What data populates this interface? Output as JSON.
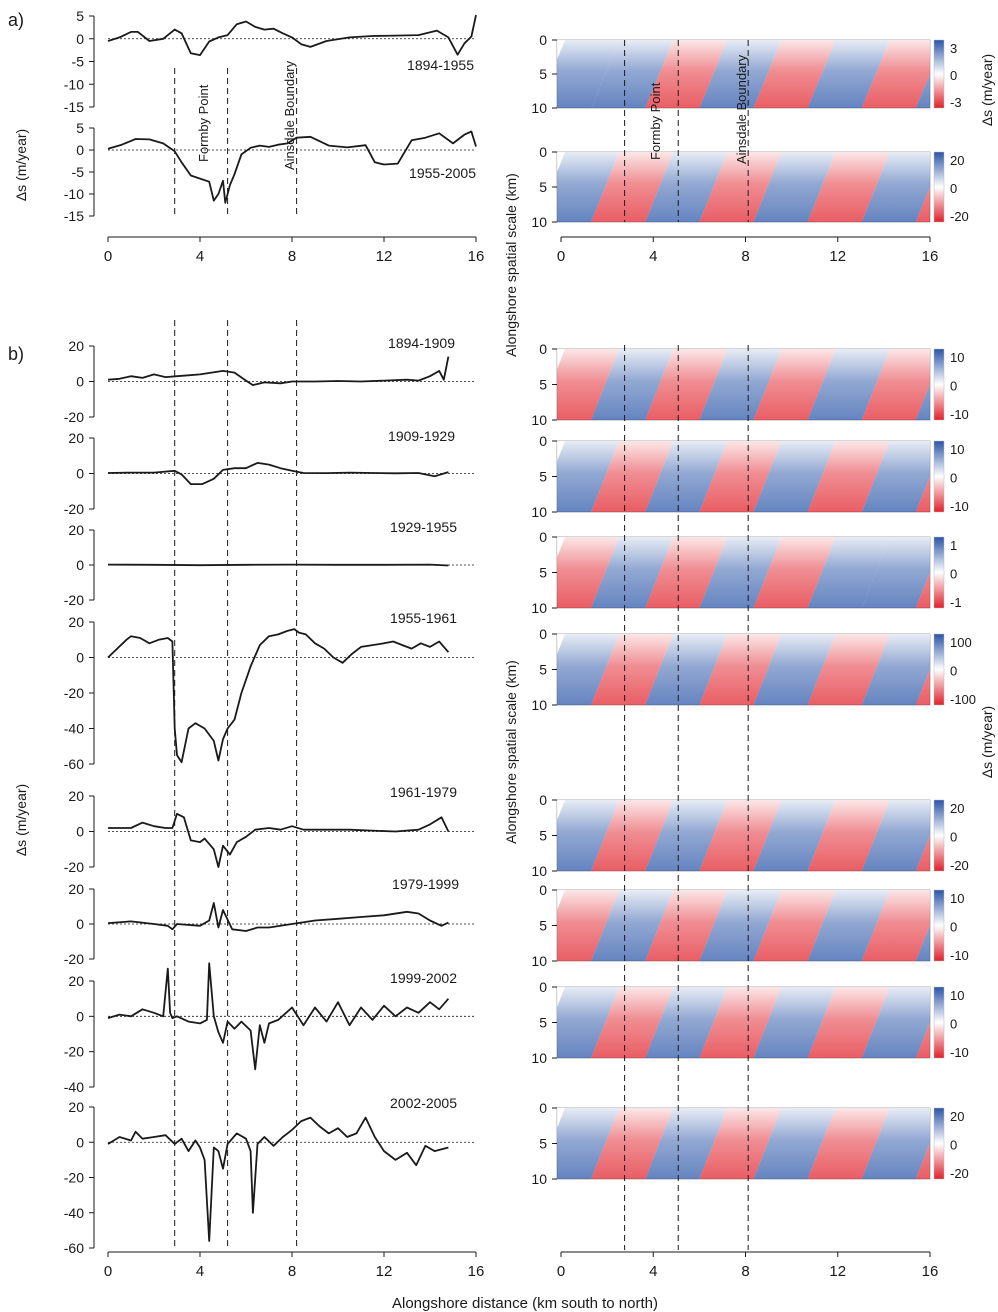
{
  "figure": {
    "panel_a_label": "a)",
    "panel_b_label": "b)",
    "xlabel": "Alongshore distance (km south to north)",
    "line_ylabel": "Δs (m/year)",
    "wavelet_ylabel": "Alongshore spatial scale (km)",
    "colorbar_label": "Δs (m/year)",
    "x_ticks": [
      "0",
      "4",
      "8",
      "12",
      "16"
    ],
    "scale_ticks": [
      "0",
      "5",
      "10"
    ],
    "landmarks": [
      {
        "name": "Formby Point",
        "x_km": 4.0
      },
      {
        "name": "Ainsdale Boundary",
        "x_km": 8.2
      }
    ],
    "reference_lines_km": [
      2.9,
      5.2,
      8.2
    ],
    "colors": {
      "positive": "#2a55a8",
      "negative": "#e0202a",
      "zero": "#ffffff",
      "line": "#1a1a1a"
    }
  },
  "chart_data": [
    {
      "type": "line",
      "panel": "a",
      "period": "1894-1955",
      "ylim": [
        -15,
        5
      ],
      "yticks": [
        "5",
        "0",
        "-5",
        "-10",
        "-15"
      ],
      "xlim": [
        0,
        16
      ],
      "x": [
        0,
        0.5,
        1,
        1.3,
        1.8,
        2.4,
        2.9,
        3.2,
        3.6,
        4.0,
        4.4,
        4.8,
        5.2,
        5.6,
        6.0,
        6.4,
        6.8,
        7.2,
        7.6,
        8.0,
        8.4,
        8.8,
        9.5,
        10.5,
        11.5,
        12.5,
        13.5,
        14.3,
        14.8,
        15.2,
        15.5,
        15.8,
        16.0
      ],
      "y": [
        -0.5,
        0.3,
        1.5,
        1.5,
        -0.5,
        0,
        2,
        1.2,
        -3.2,
        -3.6,
        -0.6,
        0.3,
        0.8,
        3.2,
        3.8,
        2.6,
        2.0,
        2.2,
        1.2,
        0.3,
        -1.2,
        -1.8,
        -0.5,
        0.3,
        0.6,
        0.7,
        0.8,
        1.8,
        0.3,
        -3.5,
        -1,
        0.5,
        5.2
      ]
    },
    {
      "type": "line",
      "panel": "a",
      "period": "1955-2005",
      "ylim": [
        -15,
        5
      ],
      "yticks": [
        "5",
        "0",
        "-5",
        "-10",
        "-15"
      ],
      "xlim": [
        0,
        16
      ],
      "x": [
        0,
        0.6,
        1.2,
        1.8,
        2.4,
        2.9,
        3.2,
        3.6,
        4.0,
        4.4,
        4.6,
        4.8,
        5.0,
        5.1,
        5.3,
        5.5,
        5.8,
        6.2,
        6.6,
        7.0,
        7.4,
        7.8,
        8.2,
        8.8,
        9.6,
        10.4,
        11.2,
        11.6,
        12.0,
        12.6,
        13.2,
        13.8,
        14.4,
        15.0,
        15.5,
        15.8,
        16.0
      ],
      "y": [
        0.3,
        1.2,
        2.5,
        2.4,
        1.5,
        -0.3,
        -2.8,
        -5.8,
        -6.5,
        -7.2,
        -11.5,
        -10.0,
        -7.0,
        -12.0,
        -8.0,
        -5.5,
        -1.0,
        0.5,
        1.0,
        0.7,
        1.2,
        1.5,
        2.8,
        3.0,
        1.0,
        0.6,
        1.1,
        -2.8,
        -3.3,
        -3.1,
        2.2,
        2.8,
        3.8,
        1.5,
        3.5,
        4.2,
        0.8
      ]
    },
    {
      "type": "line",
      "panel": "b",
      "period": "1894-1909",
      "ylim": [
        -20,
        20
      ],
      "yticks": [
        "20",
        "0",
        "-20"
      ],
      "xlim": [
        0,
        16
      ],
      "x": [
        0,
        0.5,
        1,
        1.5,
        2,
        2.5,
        3,
        3.5,
        4,
        4.5,
        5,
        5.5,
        6,
        6.3,
        6.8,
        7.5,
        8,
        9,
        10,
        11,
        12,
        13,
        13.5,
        14,
        14.4,
        14.6,
        14.8
      ],
      "y": [
        1,
        1.5,
        3,
        2,
        4,
        2.5,
        3,
        3.5,
        4,
        5,
        6,
        5,
        0.5,
        -2,
        -0.5,
        -1,
        0,
        0,
        0.3,
        0,
        0.5,
        1,
        0.5,
        3,
        6,
        1,
        14
      ]
    },
    {
      "type": "line",
      "panel": "b",
      "period": "1909-1929",
      "ylim": [
        -20,
        20
      ],
      "yticks": [
        "20",
        "0",
        "-20"
      ],
      "xlim": [
        0,
        16
      ],
      "x": [
        0,
        1,
        2,
        2.9,
        3.2,
        3.6,
        4.1,
        4.6,
        5.0,
        5.5,
        6.0,
        6.5,
        7.0,
        7.5,
        8.0,
        8.5,
        9.5,
        10.5,
        11.5,
        12.5,
        13.5,
        14.2,
        14.8
      ],
      "y": [
        0.3,
        0.5,
        0.5,
        1.5,
        -0.5,
        -6,
        -6,
        -3,
        2,
        3,
        3,
        6,
        5,
        3,
        1.5,
        0.3,
        0.2,
        0.5,
        0.3,
        0.1,
        0.3,
        -1.5,
        0.8
      ]
    },
    {
      "type": "line",
      "panel": "b",
      "period": "1929-1955",
      "ylim": [
        -20,
        20
      ],
      "yticks": [
        "20",
        "0",
        "-20"
      ],
      "xlim": [
        0,
        16
      ],
      "x": [
        0,
        2,
        4,
        6,
        8,
        10,
        12,
        14,
        14.8
      ],
      "y": [
        0.2,
        0.1,
        -0.1,
        0.1,
        0.2,
        0.1,
        0.1,
        0.2,
        -0.3
      ]
    },
    {
      "type": "line",
      "panel": "b",
      "period": "1955-1961",
      "ylim": [
        -60,
        20
      ],
      "yticks": [
        "20",
        "0",
        "-20",
        "-40",
        "-60"
      ],
      "xlim": [
        0,
        16
      ],
      "x": [
        0,
        0.4,
        0.8,
        1.0,
        1.4,
        1.8,
        2.2,
        2.6,
        2.8,
        2.9,
        3.0,
        3.2,
        3.5,
        3.8,
        4.2,
        4.6,
        4.8,
        5.0,
        5.2,
        5.5,
        5.8,
        6.2,
        6.6,
        7.0,
        7.4,
        7.8,
        8.1,
        8.3,
        8.6,
        9.0,
        9.4,
        9.8,
        10.2,
        10.6,
        11.0,
        11.5,
        12.0,
        12.4,
        12.8,
        13.2,
        13.6,
        14.0,
        14.4,
        14.8
      ],
      "y": [
        0,
        5,
        10,
        12,
        11,
        8,
        10,
        11,
        9,
        -40,
        -55,
        -59,
        -40,
        -37,
        -40,
        -47,
        -58,
        -46,
        -40,
        -35,
        -20,
        -5,
        7,
        12,
        13,
        15,
        16,
        14,
        13,
        8,
        5,
        0,
        -3,
        2,
        6,
        7,
        8,
        9,
        7,
        5,
        8,
        6,
        9,
        3
      ]
    },
    {
      "type": "line",
      "panel": "b",
      "period": "1961-1979",
      "ylim": [
        -20,
        20
      ],
      "yticks": [
        "20",
        "0",
        "-20"
      ],
      "xlim": [
        0,
        16
      ],
      "x": [
        0,
        1,
        1.5,
        2,
        2.5,
        2.8,
        3.0,
        3.3,
        3.6,
        4.0,
        4.2,
        4.6,
        4.8,
        5.0,
        5.3,
        5.6,
        6.0,
        6.4,
        7.0,
        7.5,
        8.0,
        8.5,
        9.5,
        10.5,
        11.5,
        12.5,
        13.5,
        14.0,
        14.5,
        14.8
      ],
      "y": [
        2,
        2,
        5,
        3,
        2,
        2,
        10,
        8,
        -5,
        -6,
        -4,
        -10,
        -20,
        -8,
        -13,
        -6,
        -3,
        1,
        2,
        1,
        3,
        1,
        1,
        1,
        0.5,
        0,
        1,
        4,
        8,
        0
      ]
    },
    {
      "type": "line",
      "panel": "b",
      "period": "1979-1999",
      "ylim": [
        -20,
        20
      ],
      "yticks": [
        "20",
        "0",
        "-20"
      ],
      "xlim": [
        0,
        16
      ],
      "x": [
        0,
        1,
        2,
        2.6,
        2.8,
        3.0,
        4.0,
        4.4,
        4.6,
        4.8,
        5.0,
        5.4,
        6.0,
        6.5,
        7.0,
        8.0,
        9.0,
        10.0,
        11.0,
        12.0,
        13.0,
        13.5,
        14.0,
        14.5,
        14.8
      ],
      "y": [
        0.5,
        1.5,
        0,
        -1,
        -3,
        0,
        -1,
        2,
        12,
        -2,
        8,
        -3,
        -4,
        -2,
        -2,
        0,
        2,
        3,
        4,
        5,
        7,
        6,
        2,
        -1,
        0.8
      ]
    },
    {
      "type": "line",
      "panel": "b",
      "period": "1999-2002",
      "ylim": [
        -40,
        20
      ],
      "yticks": [
        "20",
        "0",
        "-20",
        "-40"
      ],
      "xlim": [
        0,
        16
      ],
      "x": [
        0,
        0.5,
        1,
        1.5,
        2,
        2.4,
        2.6,
        2.7,
        2.8,
        3.0,
        3.5,
        4.0,
        4.3,
        4.4,
        4.6,
        4.8,
        5.0,
        5.2,
        5.5,
        5.8,
        6.2,
        6.4,
        6.6,
        6.8,
        7.0,
        7.4,
        8.0,
        8.5,
        9.0,
        9.5,
        10.0,
        10.5,
        11.0,
        11.5,
        12.0,
        12.5,
        13.0,
        13.5,
        14.0,
        14.4,
        14.8
      ],
      "y": [
        -1,
        1,
        0,
        4,
        2,
        0,
        27,
        2,
        -1,
        0,
        -3,
        -4,
        -2,
        30,
        0,
        -9,
        -15,
        -3,
        -7,
        -3,
        -8,
        -30,
        -5,
        -15,
        -4,
        -2,
        5,
        -5,
        5,
        -3,
        8,
        -5,
        5,
        -2,
        6,
        0,
        5,
        2,
        8,
        4,
        10
      ]
    },
    {
      "type": "line",
      "panel": "b",
      "period": "2002-2005",
      "ylim": [
        -60,
        20
      ],
      "yticks": [
        "20",
        "0",
        "-20",
        "-40",
        "-60"
      ],
      "xlim": [
        0,
        16
      ],
      "x": [
        0,
        0.5,
        1,
        1.2,
        1.5,
        2,
        2.5,
        2.9,
        3.2,
        3.5,
        3.8,
        4.0,
        4.2,
        4.4,
        4.6,
        4.8,
        5.0,
        5.2,
        5.6,
        6.0,
        6.2,
        6.3,
        6.5,
        6.8,
        7.2,
        7.6,
        8.0,
        8.4,
        8.8,
        9.2,
        9.6,
        10.0,
        10.4,
        10.8,
        11.2,
        11.6,
        12.0,
        12.5,
        13.0,
        13.4,
        13.8,
        14.2,
        14.8
      ],
      "y": [
        -1,
        3,
        1,
        6,
        2,
        3,
        4,
        -1,
        2,
        -5,
        1,
        -3,
        -10,
        -56,
        -3,
        -5,
        -15,
        -1,
        5,
        2,
        -5,
        -40,
        -1,
        3,
        -2,
        3,
        7,
        12,
        14,
        9,
        5,
        8,
        3,
        5,
        14,
        3,
        -5,
        -10,
        -6,
        -13,
        -2,
        -5,
        -3
      ]
    }
  ],
  "wavelets": [
    {
      "period": "1894-1955",
      "panel": "a",
      "range": [
        "3",
        "0",
        "-3"
      ],
      "pattern": [
        1,
        1,
        -1,
        1,
        -1,
        1,
        -1,
        1
      ],
      "show_landmarks": true
    },
    {
      "period": "1955-2005",
      "panel": "a",
      "range": [
        "20",
        "0",
        "-20"
      ],
      "pattern": [
        1,
        -1,
        1,
        -1,
        1,
        -1,
        1,
        -1
      ],
      "show_landmarks": false
    },
    {
      "period": "1894-1909",
      "panel": "b",
      "range": [
        "10",
        "0",
        "-10"
      ],
      "pattern": [
        -1,
        1,
        -1,
        1,
        -1,
        1,
        -1,
        1
      ]
    },
    {
      "period": "1909-1929",
      "panel": "b",
      "range": [
        "10",
        "0",
        "-10"
      ],
      "pattern": [
        1,
        -1,
        1,
        -1,
        1,
        -1,
        1,
        -1
      ]
    },
    {
      "period": "1929-1955",
      "panel": "b",
      "range": [
        "1",
        "0",
        "-1"
      ],
      "pattern": [
        -1,
        1,
        -1,
        1,
        -1,
        1,
        1,
        -1
      ]
    },
    {
      "period": "1955-1961",
      "panel": "b",
      "range": [
        "100",
        "0",
        "-100"
      ],
      "pattern": [
        1,
        -1,
        1,
        -1,
        1,
        -1,
        1,
        -1
      ]
    },
    {
      "period": "1961-1979",
      "panel": "b",
      "range": [
        "20",
        "0",
        "-20"
      ],
      "pattern": [
        1,
        -1,
        1,
        -1,
        1,
        -1,
        1,
        -1
      ]
    },
    {
      "period": "1979-1999",
      "panel": "b",
      "range": [
        "10",
        "0",
        "-10"
      ],
      "pattern": [
        -1,
        1,
        -1,
        1,
        -1,
        1,
        -1,
        1
      ]
    },
    {
      "period": "1999-2002",
      "panel": "b",
      "range": [
        "10",
        "0",
        "-10"
      ],
      "pattern": [
        1,
        -1,
        1,
        -1,
        1,
        -1,
        1,
        -1
      ]
    },
    {
      "period": "2002-2005",
      "panel": "b",
      "range": [
        "20",
        "0",
        "-20"
      ],
      "pattern": [
        1,
        -1,
        1,
        -1,
        1,
        -1,
        1,
        -1
      ]
    }
  ]
}
